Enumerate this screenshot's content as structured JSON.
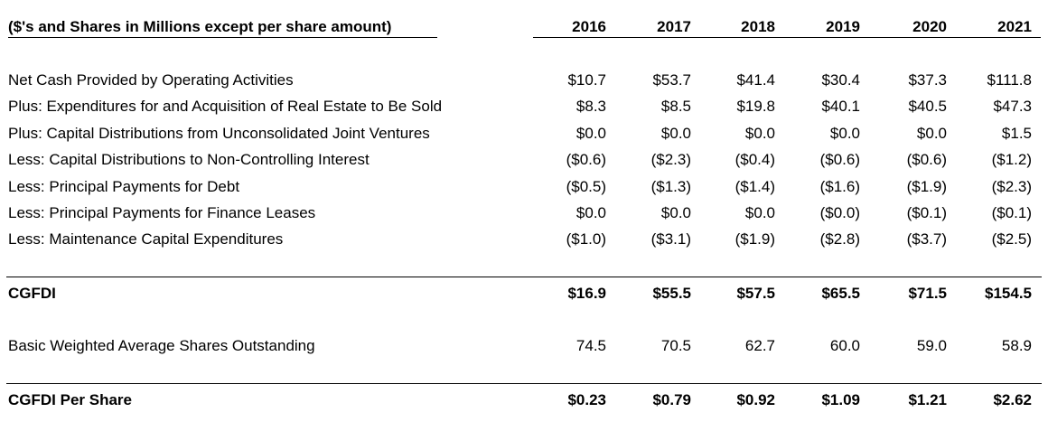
{
  "header": {
    "title": "($'s and Shares in Millions except per share amount)",
    "years": [
      "2016",
      "2017",
      "2018",
      "2019",
      "2020",
      "2021"
    ]
  },
  "rows": [
    {
      "label": "Net Cash Provided by Operating Activities",
      "values": [
        "$10.7",
        "$53.7",
        "$41.4",
        "$30.4",
        "$37.3",
        "$111.8"
      ]
    },
    {
      "label": "Plus: Expenditures for and Acquisition of Real Estate to Be Sold",
      "values": [
        "$8.3",
        "$8.5",
        "$19.8",
        "$40.1",
        "$40.5",
        "$47.3"
      ]
    },
    {
      "label": "Plus: Capital Distributions from Unconsolidated Joint Ventures",
      "values": [
        "$0.0",
        "$0.0",
        "$0.0",
        "$0.0",
        "$0.0",
        "$1.5"
      ]
    },
    {
      "label": "Less: Capital Distributions to Non-Controlling Interest",
      "values": [
        "($0.6)",
        "($2.3)",
        "($0.4)",
        "($0.6)",
        "($0.6)",
        "($1.2)"
      ]
    },
    {
      "label": "Less: Principal Payments for Debt",
      "values": [
        "($0.5)",
        "($1.3)",
        "($1.4)",
        "($1.6)",
        "($1.9)",
        "($2.3)"
      ]
    },
    {
      "label": "Less: Principal Payments for Finance Leases",
      "values": [
        "$0.0",
        "$0.0",
        "$0.0",
        "($0.0)",
        "($0.1)",
        "($0.1)"
      ]
    },
    {
      "label": "Less: Maintenance Capital Expenditures",
      "values": [
        "($1.0)",
        "($3.1)",
        "($1.9)",
        "($2.8)",
        "($3.7)",
        "($2.5)"
      ]
    }
  ],
  "cgfdi": {
    "label": "CGFDI",
    "values": [
      "$16.9",
      "$55.5",
      "$57.5",
      "$65.5",
      "$71.5",
      "$154.5"
    ]
  },
  "shares": {
    "label": "Basic Weighted Average Shares Outstanding",
    "values": [
      "74.5",
      "70.5",
      "62.7",
      "60.0",
      "59.0",
      "58.9"
    ]
  },
  "per_share": {
    "label": "CGFDI Per Share",
    "values": [
      "$0.23",
      "$0.79",
      "$0.92",
      "$1.09",
      "$1.21",
      "$2.62"
    ]
  }
}
